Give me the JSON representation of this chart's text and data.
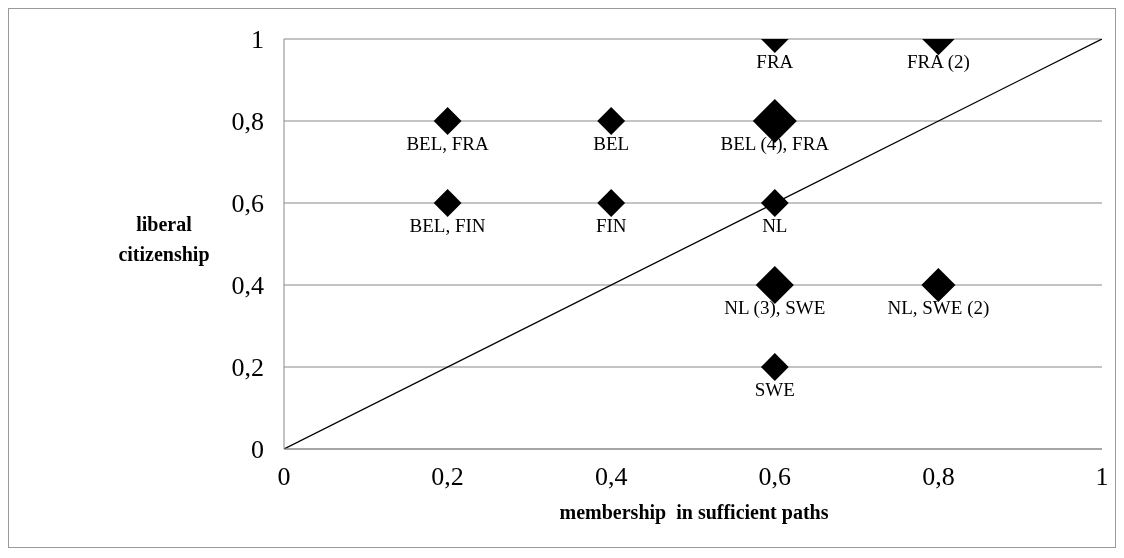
{
  "chart_data": {
    "type": "bubble",
    "xlabel": "membership  in sufficient paths",
    "ylabel": "liberal citizenship",
    "series": [
      {
        "marker": "diamond",
        "color": "#000000",
        "x": [
          0.2,
          0.4,
          0.6,
          0.8,
          0.6,
          0.2,
          0.4,
          0.6,
          0.6,
          0.8,
          0.6
        ],
        "values": [
          0.8,
          0.8,
          1,
          1,
          0.8,
          0.6,
          0.6,
          0.6,
          0.4,
          0.4,
          0.2
        ],
        "sizes": [
          0.4,
          0.4,
          0.4,
          0.55,
          1,
          0.4,
          0.4,
          0.4,
          0.75,
          0.6,
          0.4
        ]
      },
      {
        "type": "line",
        "color": "#000000",
        "x": [
          0,
          1
        ],
        "values": [
          0,
          1
        ]
      }
    ],
    "annotations": [
      {
        "text": "BEL, FRA",
        "x": 0.2,
        "y": 0.8
      },
      {
        "text": "BEL",
        "x": 0.4,
        "y": 0.8
      },
      {
        "text": "FRA",
        "x": 0.6,
        "y": 1
      },
      {
        "text": "FRA (2)",
        "x": 0.8,
        "y": 1
      },
      {
        "text": "BEL (4), FRA",
        "x": 0.6,
        "y": 0.8
      },
      {
        "text": "BEL, FIN",
        "x": 0.2,
        "y": 0.6
      },
      {
        "text": "FIN",
        "x": 0.4,
        "y": 0.6
      },
      {
        "text": "NL",
        "x": 0.6,
        "y": 0.6
      },
      {
        "text": "NL (3), SWE",
        "x": 0.6,
        "y": 0.4
      },
      {
        "text": "NL, SWE (2)",
        "x": 0.8,
        "y": 0.4
      },
      {
        "text": "SWE",
        "x": 0.6,
        "y": 0.2
      }
    ],
    "xlim": [
      0,
      1
    ],
    "xticks": [
      {
        "value": 0,
        "label": "0"
      },
      {
        "value": 0.2,
        "label": "0,2"
      },
      {
        "value": 0.4,
        "label": "0,4"
      },
      {
        "value": 0.6,
        "label": "0,6"
      },
      {
        "value": 0.8,
        "label": "0,8"
      },
      {
        "value": 1,
        "label": "1"
      }
    ],
    "ylim": [
      0,
      1
    ],
    "yticks": [
      {
        "value": 0,
        "label": "0"
      },
      {
        "value": 0.2,
        "label": "0,2"
      },
      {
        "value": 0.4,
        "label": "0,4"
      },
      {
        "value": 0.6,
        "label": "0,6"
      },
      {
        "value": 0.8,
        "label": "0,8"
      },
      {
        "value": 1,
        "label": "1"
      }
    ],
    "grid": "y"
  }
}
